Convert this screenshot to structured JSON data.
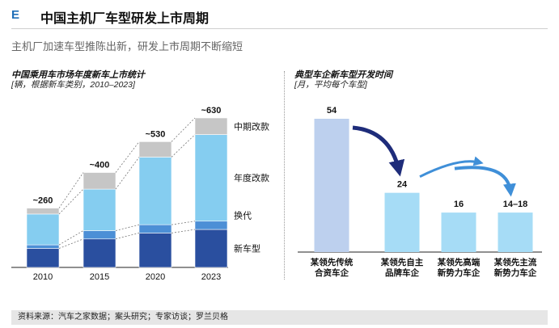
{
  "header": {
    "section_letter": "E",
    "title": "中国主机厂车型研发上市周期",
    "subtitle": "主机厂加速车型推陈出新，研发上市周期不断缩短"
  },
  "colors": {
    "new_model": "#2a4f9f",
    "refresh": "#4c8fd6",
    "annual_facelift": "#85cdf0",
    "mid_facelift": "#c6c6c6",
    "dev_bar_1": "#bdd0ee",
    "dev_bar_other": "#a6dcf6",
    "arrow_dark": "#1e2c7a",
    "arrow_light": "#3f8fd8"
  },
  "left_chart": {
    "title": "中国乘用车市场年度新车上市统计",
    "subtitle": "[辆，根据新车类别，2010–2023]"
  },
  "right_chart": {
    "title": "典型车企新车型开发时间",
    "subtitle": "[月，平均每个车型]"
  },
  "footer": {
    "source": "资料来源：汽车之家数据；案头研究；专家访谈；罗兰贝格"
  },
  "chart_data": [
    {
      "type": "bar",
      "stacked": true,
      "title": "中国乘用车市场年度新车上市统计",
      "subtitle": "[辆，根据新车类别，2010–2023]",
      "categories": [
        "2010",
        "2015",
        "2020",
        "2023"
      ],
      "series": [
        {
          "name": "新车型",
          "color": "#2a4f9f",
          "values": [
            80,
            120,
            145,
            160
          ]
        },
        {
          "name": "换代",
          "color": "#4c8fd6",
          "values": [
            15,
            35,
            35,
            35
          ]
        },
        {
          "name": "年度改款",
          "color": "#85cdf0",
          "values": [
            130,
            175,
            285,
            365
          ]
        },
        {
          "name": "中期改款",
          "color": "#c6c6c6",
          "values": [
            25,
            70,
            65,
            70
          ]
        }
      ],
      "totals": [
        "~260",
        "~400",
        "~530",
        "~630"
      ],
      "ylim": [
        0,
        650
      ],
      "grid": false,
      "legend": "right"
    },
    {
      "type": "bar",
      "title": "典型车企新车型开发时间",
      "subtitle": "[月，平均每个车型]",
      "categories": [
        "某领先传统\n合资车企",
        "某领先自主\n品牌车企",
        "某领先高端\n新势力车企",
        "某领先主流\n新势力车企"
      ],
      "values": [
        54,
        24,
        16,
        16
      ],
      "value_labels": [
        "54",
        "24",
        "16",
        "14–18"
      ],
      "ylim": [
        0,
        60
      ]
    }
  ]
}
